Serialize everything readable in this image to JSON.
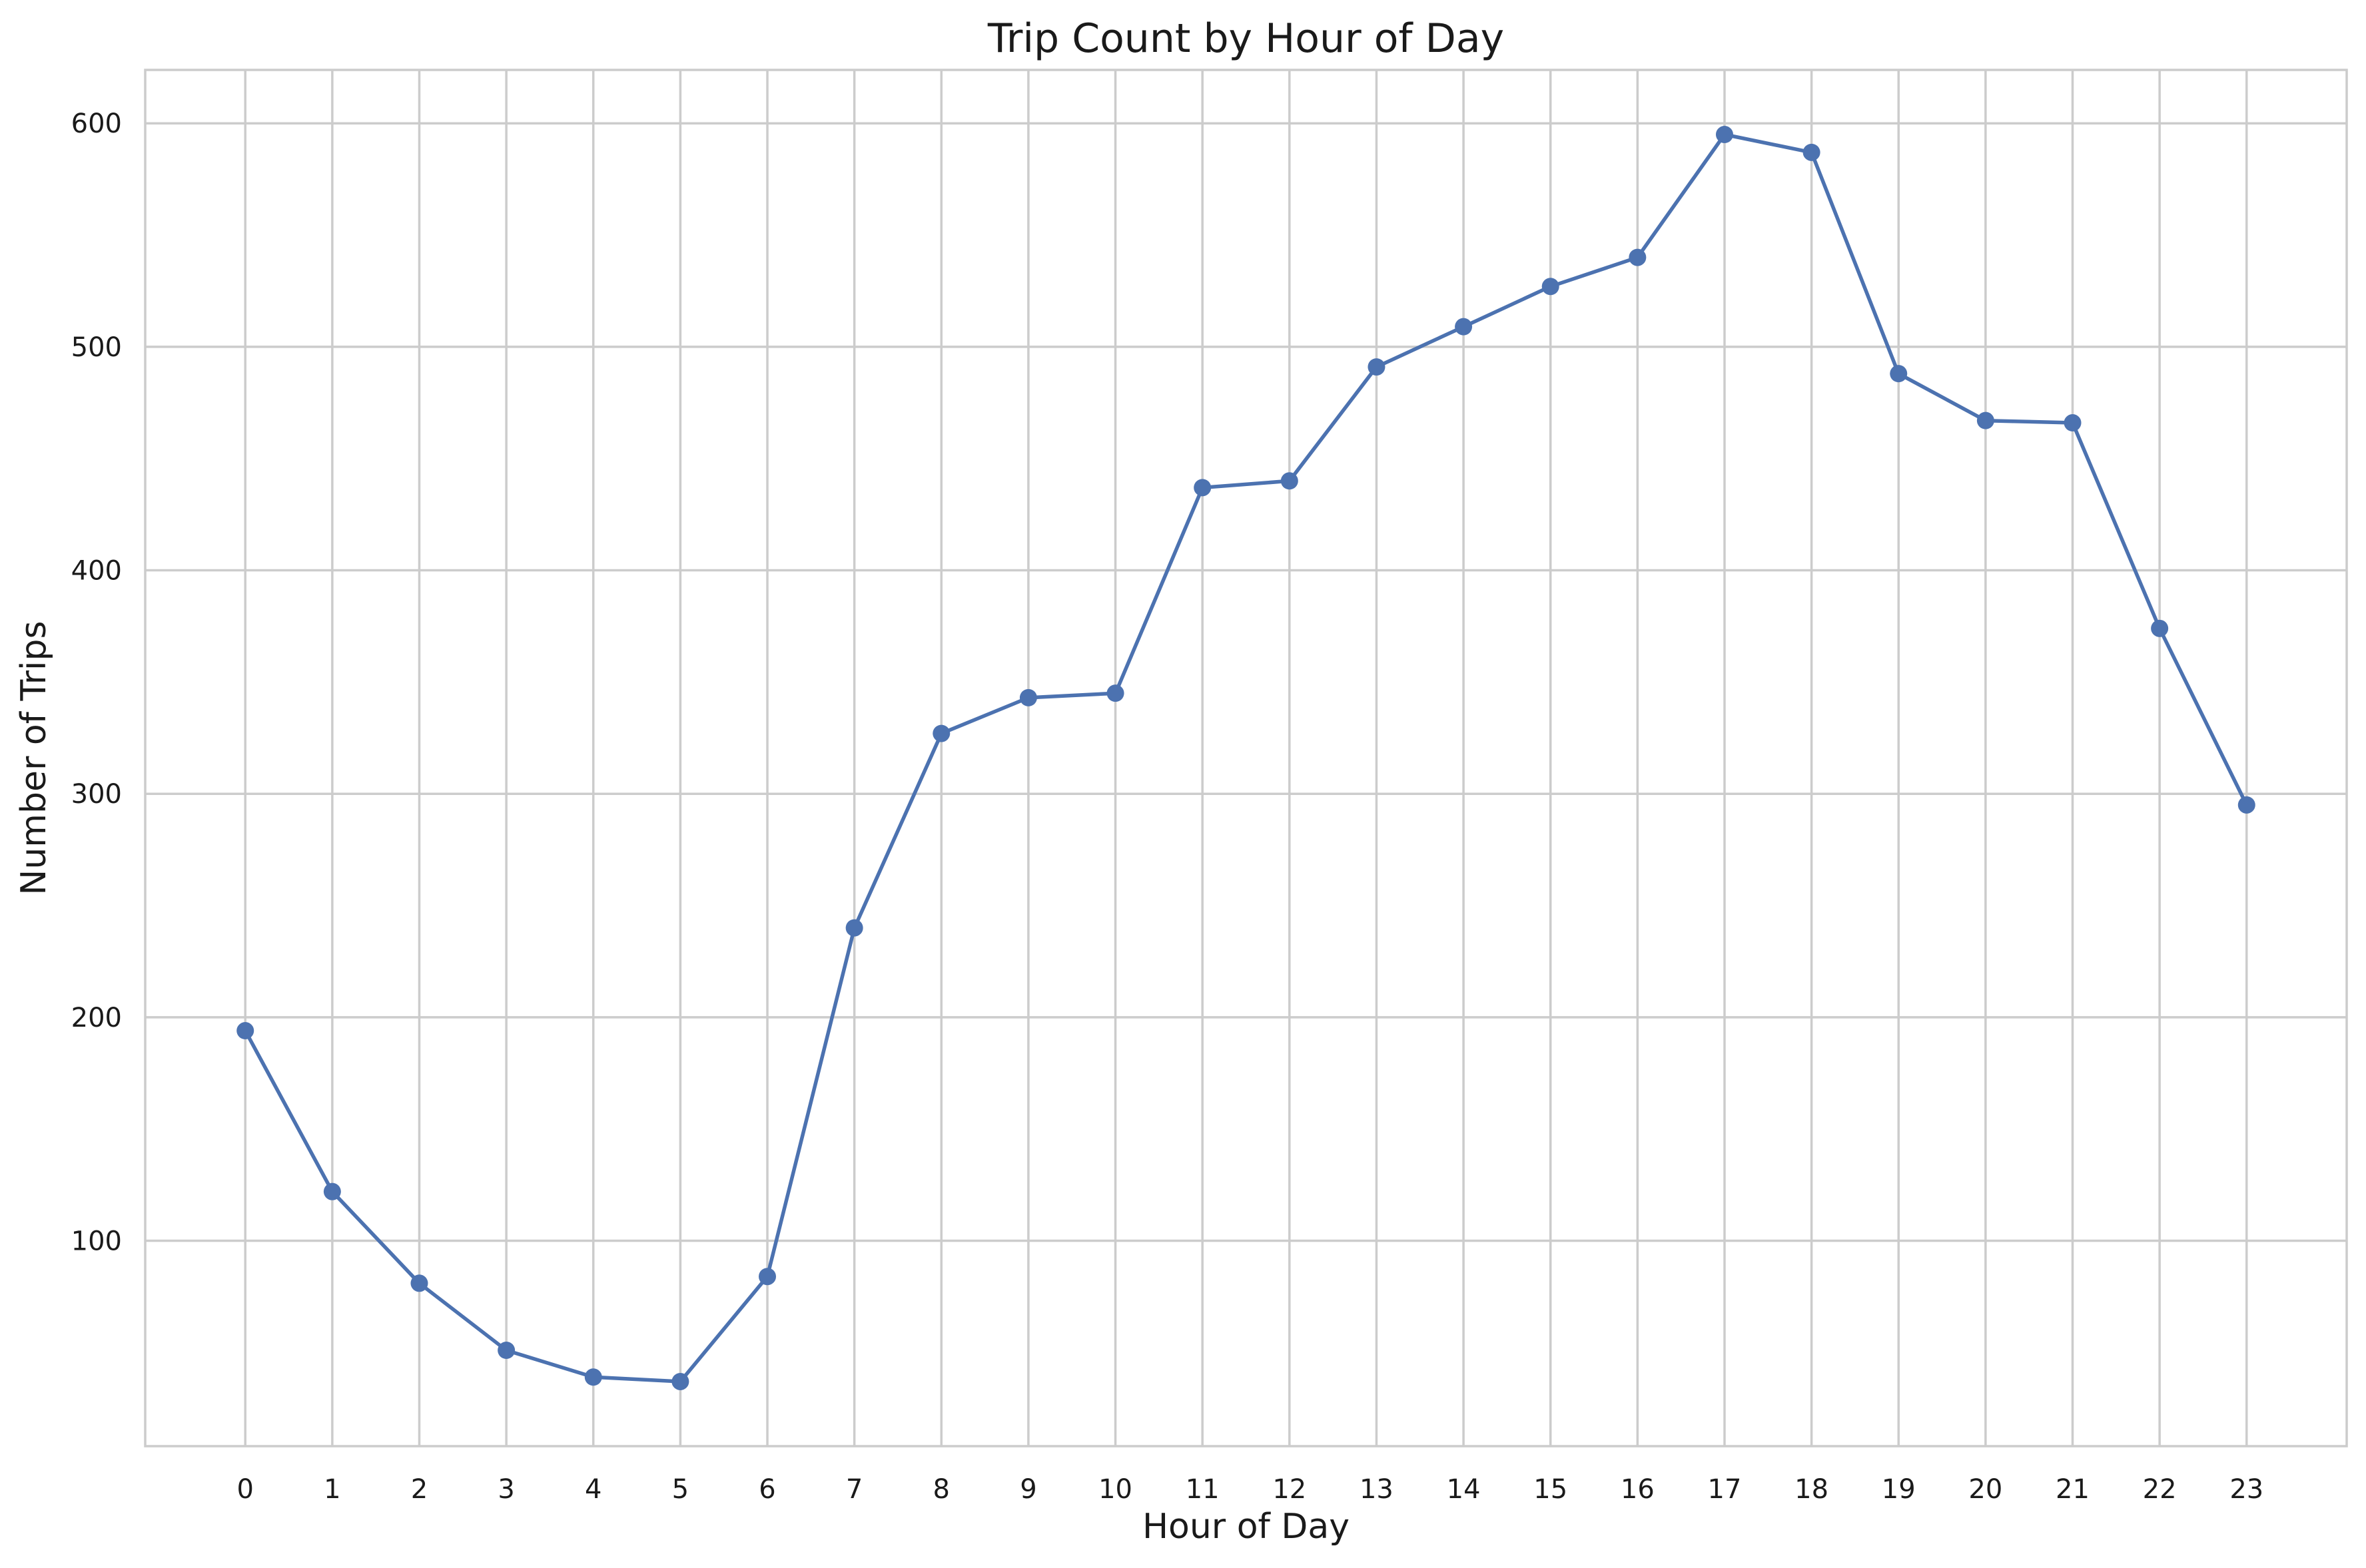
{
  "chart_data": {
    "type": "line",
    "title": "Trip Count by Hour of Day",
    "xlabel": "Hour of Day",
    "ylabel": "Number of Trips",
    "x": [
      0,
      1,
      2,
      3,
      4,
      5,
      6,
      7,
      8,
      9,
      10,
      11,
      12,
      13,
      14,
      15,
      16,
      17,
      18,
      19,
      20,
      21,
      22,
      23
    ],
    "series": [
      {
        "values": [
          194,
          122,
          81,
          51,
          39,
          37,
          84,
          240,
          327,
          343,
          345,
          437,
          440,
          491,
          509,
          527,
          540,
          595,
          587,
          488,
          467,
          466,
          374,
          295
        ],
        "color": "#4c72b0",
        "marker": "circle"
      }
    ],
    "xlim": [
      -1.15,
      24.15
    ],
    "ylim": [
      8.1,
      623.9
    ],
    "xticks": [
      0,
      1,
      2,
      3,
      4,
      5,
      6,
      7,
      8,
      9,
      10,
      11,
      12,
      13,
      14,
      15,
      16,
      17,
      18,
      19,
      20,
      21,
      22,
      23
    ],
    "yticks": [
      100,
      200,
      300,
      400,
      500,
      600
    ],
    "grid": true,
    "legend": "none"
  }
}
